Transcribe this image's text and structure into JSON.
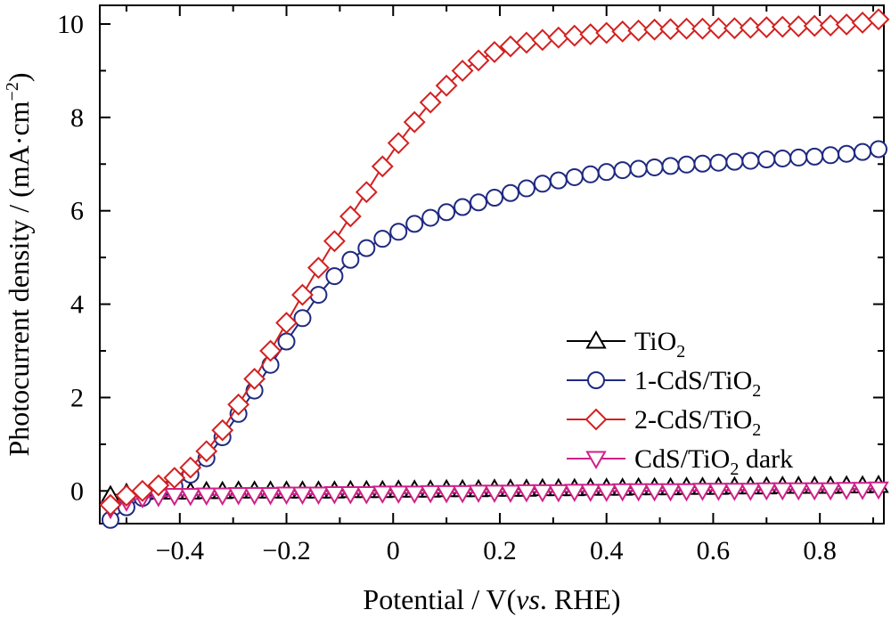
{
  "chart_data": {
    "type": "line",
    "xlabel": "Potential / V(vs. RHE)",
    "xlabel_parts": [
      "Potential / V(",
      "vs",
      ". RHE)"
    ],
    "ylabel": "Photocurrent density / (mA·cm⁻²)",
    "ylabel_parts": [
      "Photocurrent density / (mA·cm",
      "−2",
      ")"
    ],
    "xlim": [
      -0.55,
      0.92
    ],
    "ylim": [
      -0.7,
      10.4
    ],
    "xticks": [
      -0.4,
      -0.2,
      0,
      0.2,
      0.4,
      0.6,
      0.8
    ],
    "xtick_labels": [
      "−0.4",
      "−0.2",
      "0",
      "0.2",
      "0.4",
      "0.6",
      "0.8"
    ],
    "yticks": [
      0,
      2,
      4,
      6,
      8,
      10
    ],
    "ytick_labels": [
      "0",
      "2",
      "4",
      "6",
      "8",
      "10"
    ],
    "grid": false,
    "legend_position": "center-right",
    "series": [
      {
        "name": "TiO₂",
        "name_parts": [
          "TiO",
          "2",
          ""
        ],
        "marker": "triangle-up",
        "color": "#000000",
        "x": [
          -0.53,
          -0.5,
          -0.47,
          -0.44,
          -0.41,
          -0.38,
          -0.35,
          -0.32,
          -0.29,
          -0.26,
          -0.23,
          -0.2,
          -0.17,
          -0.14,
          -0.11,
          -0.08,
          -0.05,
          -0.02,
          0.01,
          0.04,
          0.07,
          0.1,
          0.13,
          0.16,
          0.19,
          0.22,
          0.25,
          0.28,
          0.31,
          0.34,
          0.37,
          0.4,
          0.43,
          0.46,
          0.49,
          0.52,
          0.55,
          0.58,
          0.61,
          0.64,
          0.67,
          0.7,
          0.73,
          0.76,
          0.79,
          0.82,
          0.85,
          0.88,
          0.91
        ],
        "y": [
          -0.1,
          -0.05,
          -0.03,
          -0.02,
          -0.02,
          -0.02,
          -0.01,
          -0.01,
          0,
          0,
          0,
          0,
          0,
          0,
          0,
          0.01,
          0.01,
          0.01,
          0.02,
          0.02,
          0.02,
          0.03,
          0.03,
          0.03,
          0.04,
          0.04,
          0.04,
          0.05,
          0.05,
          0.05,
          0.06,
          0.06,
          0.06,
          0.07,
          0.07,
          0.07,
          0.08,
          0.08,
          0.08,
          0.09,
          0.09,
          0.09,
          0.1,
          0.1,
          0.1,
          0.1,
          0.11,
          0.11,
          0.12
        ]
      },
      {
        "name": "1-CdS/TiO₂",
        "name_parts": [
          "1-CdS/TiO",
          "2",
          ""
        ],
        "marker": "circle",
        "color": "#1f2a80",
        "x": [
          -0.53,
          -0.5,
          -0.47,
          -0.44,
          -0.41,
          -0.38,
          -0.35,
          -0.32,
          -0.29,
          -0.26,
          -0.23,
          -0.2,
          -0.17,
          -0.14,
          -0.11,
          -0.08,
          -0.05,
          -0.02,
          0.01,
          0.04,
          0.07,
          0.1,
          0.13,
          0.16,
          0.19,
          0.22,
          0.25,
          0.28,
          0.31,
          0.34,
          0.37,
          0.4,
          0.43,
          0.46,
          0.49,
          0.52,
          0.55,
          0.58,
          0.61,
          0.64,
          0.67,
          0.7,
          0.73,
          0.76,
          0.79,
          0.82,
          0.85,
          0.88,
          0.91
        ],
        "y": [
          -0.62,
          -0.35,
          -0.15,
          -0.02,
          0.1,
          0.35,
          0.7,
          1.15,
          1.65,
          2.15,
          2.7,
          3.2,
          3.7,
          4.2,
          4.6,
          4.95,
          5.2,
          5.4,
          5.55,
          5.72,
          5.85,
          5.97,
          6.08,
          6.18,
          6.28,
          6.38,
          6.48,
          6.58,
          6.65,
          6.72,
          6.78,
          6.83,
          6.87,
          6.9,
          6.93,
          6.96,
          6.99,
          7.01,
          7.03,
          7.05,
          7.07,
          7.1,
          7.12,
          7.14,
          7.16,
          7.19,
          7.22,
          7.26,
          7.32
        ]
      },
      {
        "name": "2-CdS/TiO₂",
        "name_parts": [
          "2-CdS/TiO",
          "2",
          ""
        ],
        "marker": "diamond",
        "color": "#d42020",
        "x": [
          -0.53,
          -0.5,
          -0.47,
          -0.44,
          -0.41,
          -0.38,
          -0.35,
          -0.32,
          -0.29,
          -0.26,
          -0.23,
          -0.2,
          -0.17,
          -0.14,
          -0.11,
          -0.08,
          -0.05,
          -0.02,
          0.01,
          0.04,
          0.07,
          0.1,
          0.13,
          0.16,
          0.19,
          0.22,
          0.25,
          0.28,
          0.31,
          0.34,
          0.37,
          0.4,
          0.43,
          0.46,
          0.49,
          0.52,
          0.55,
          0.58,
          0.61,
          0.64,
          0.67,
          0.7,
          0.73,
          0.76,
          0.79,
          0.82,
          0.85,
          0.88,
          0.91
        ],
        "y": [
          -0.3,
          -0.1,
          0,
          0.12,
          0.28,
          0.5,
          0.85,
          1.3,
          1.85,
          2.4,
          3.0,
          3.6,
          4.2,
          4.78,
          5.35,
          5.88,
          6.4,
          6.95,
          7.45,
          7.9,
          8.32,
          8.68,
          9.0,
          9.22,
          9.4,
          9.52,
          9.6,
          9.66,
          9.71,
          9.75,
          9.78,
          9.81,
          9.84,
          9.86,
          9.88,
          9.89,
          9.9,
          9.9,
          9.91,
          9.91,
          9.92,
          9.93,
          9.94,
          9.95,
          9.96,
          9.97,
          9.99,
          10.03,
          10.1
        ]
      },
      {
        "name": "CdS/TiO₂ dark",
        "name_parts": [
          "CdS/TiO",
          "2",
          " dark"
        ],
        "marker": "triangle-down",
        "color": "#d0208a",
        "x": [
          -0.53,
          -0.5,
          -0.47,
          -0.44,
          -0.41,
          -0.38,
          -0.35,
          -0.32,
          -0.29,
          -0.26,
          -0.23,
          -0.2,
          -0.17,
          -0.14,
          -0.11,
          -0.08,
          -0.05,
          -0.02,
          0.01,
          0.04,
          0.07,
          0.1,
          0.13,
          0.16,
          0.19,
          0.22,
          0.25,
          0.28,
          0.31,
          0.34,
          0.37,
          0.4,
          0.43,
          0.46,
          0.49,
          0.52,
          0.55,
          0.58,
          0.61,
          0.64,
          0.67,
          0.7,
          0.73,
          0.76,
          0.79,
          0.82,
          0.85,
          0.88,
          0.91
        ],
        "y": [
          -0.38,
          -0.22,
          -0.15,
          -0.12,
          -0.1,
          -0.1,
          -0.09,
          -0.09,
          -0.08,
          -0.08,
          -0.08,
          -0.07,
          -0.07,
          -0.07,
          -0.06,
          -0.06,
          -0.06,
          -0.05,
          -0.05,
          -0.05,
          -0.04,
          -0.04,
          -0.04,
          -0.03,
          -0.03,
          -0.03,
          -0.02,
          -0.02,
          -0.02,
          -0.01,
          -0.01,
          -0.01,
          0,
          0,
          0,
          0,
          0,
          0.01,
          0.01,
          0.01,
          0.01,
          0.02,
          0.02,
          0.02,
          0.02,
          0.02,
          0.03,
          0.03,
          0.04
        ]
      }
    ]
  }
}
